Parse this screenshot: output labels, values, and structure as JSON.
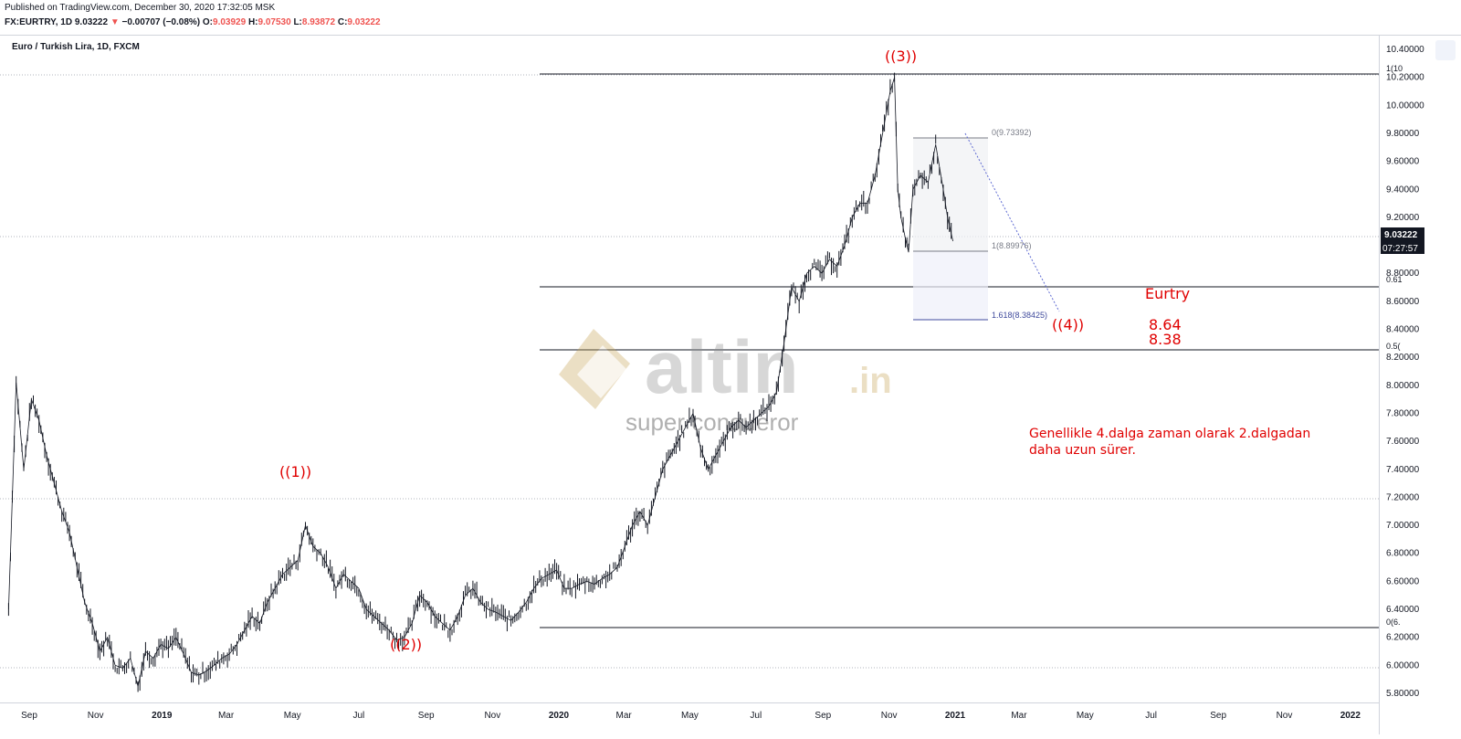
{
  "header": {
    "published": "Published on TradingView.com, December 30, 2020 17:32:05 MSK",
    "symbol": "FX:EURTRY, 1D",
    "last": "9.03222",
    "change": "−0.00707 (−0.08%)",
    "o_label": "O:",
    "o": "9.03929",
    "h_label": "H:",
    "h": "9.07530",
    "l_label": "L:",
    "l": "8.93872",
    "c_label": "C:",
    "c": "9.03222"
  },
  "chart_title": "Euro / Turkish Lira, 1D, FXCM",
  "price_label": {
    "value": "9.03222",
    "countdown": "07:27:57"
  },
  "colors": {
    "up": "#131722",
    "marker": "#131722",
    "annotation": "#e00000",
    "fib_blue": "#3f4a9c"
  },
  "annotations": {
    "wave1": "((1))",
    "wave2": "((2))",
    "wave3": "((3))",
    "wave4": "((4))",
    "title": "Eurtry",
    "target1": "8.64",
    "target2": "8.38",
    "note_line1": "Genellikle 4.dalga zaman olarak 2.dalgadan",
    "note_line2": "daha uzun sürer."
  },
  "fib_labels": {
    "zero": "0(9.73392)",
    "one": "1(8.89976)",
    "ext": "1.618(8.38425)",
    "r_top": "1(10",
    "r_061": "0.61",
    "r_05": "0.5(",
    "r_0": "0(6."
  },
  "watermark": {
    "brand": "altin",
    "tld": ".in",
    "tagline": "super conqueror"
  },
  "chart_data": {
    "type": "line",
    "title": "Euro / Turkish Lira, 1D, FXCM",
    "y_ticks": [
      "10.40000",
      "10.20000",
      "10.00000",
      "9.80000",
      "9.60000",
      "9.40000",
      "9.20000",
      "8.80000",
      "8.60000",
      "8.40000",
      "8.20000",
      "8.00000",
      "7.80000",
      "7.60000",
      "7.40000",
      "7.20000",
      "7.00000",
      "6.80000",
      "6.60000",
      "6.40000",
      "6.20000",
      "6.00000",
      "5.80000"
    ],
    "x_ticks": [
      "Sep",
      "Nov",
      "2019",
      "Mar",
      "May",
      "Jul",
      "Sep",
      "Nov",
      "2020",
      "Mar",
      "May",
      "Jul",
      "Sep",
      "Nov",
      "2021",
      "Mar",
      "May",
      "Jul",
      "Sep",
      "Nov",
      "2022"
    ],
    "ylim": [
      5.7,
      10.5
    ],
    "series": [
      {
        "values": [
          [
            "2018-08-13",
            6.4
          ],
          [
            "2018-08-20",
            8.02
          ],
          [
            "2018-08-27",
            7.4
          ],
          [
            "2018-09-03",
            7.9
          ],
          [
            "2018-09-10",
            7.75
          ],
          [
            "2018-09-17",
            7.5
          ],
          [
            "2018-09-24",
            7.3
          ],
          [
            "2018-10-01",
            7.1
          ],
          [
            "2018-10-08",
            6.95
          ],
          [
            "2018-10-15",
            6.7
          ],
          [
            "2018-10-22",
            6.45
          ],
          [
            "2018-10-29",
            6.3
          ],
          [
            "2018-11-05",
            6.1
          ],
          [
            "2018-11-12",
            6.2
          ],
          [
            "2018-11-19",
            6.0
          ],
          [
            "2018-11-26",
            5.98
          ],
          [
            "2018-12-03",
            6.05
          ],
          [
            "2018-12-10",
            5.85
          ],
          [
            "2018-12-17",
            6.1
          ],
          [
            "2018-12-24",
            6.05
          ],
          [
            "2018-12-31",
            6.15
          ],
          [
            "2019-01-07",
            6.12
          ],
          [
            "2019-01-14",
            6.2
          ],
          [
            "2019-01-21",
            6.08
          ],
          [
            "2019-01-28",
            5.95
          ],
          [
            "2019-02-04",
            5.93
          ],
          [
            "2019-02-11",
            5.96
          ],
          [
            "2019-02-18",
            6.0
          ],
          [
            "2019-02-25",
            6.05
          ],
          [
            "2019-03-04",
            6.08
          ],
          [
            "2019-03-11",
            6.15
          ],
          [
            "2019-03-18",
            6.25
          ],
          [
            "2019-03-25",
            6.35
          ],
          [
            "2019-04-01",
            6.3
          ],
          [
            "2019-04-08",
            6.45
          ],
          [
            "2019-04-15",
            6.55
          ],
          [
            "2019-04-22",
            6.65
          ],
          [
            "2019-04-29",
            6.7
          ],
          [
            "2019-05-06",
            6.75
          ],
          [
            "2019-05-13",
            7.0
          ],
          [
            "2019-05-20",
            6.85
          ],
          [
            "2019-05-27",
            6.8
          ],
          [
            "2019-06-03",
            6.7
          ],
          [
            "2019-06-10",
            6.55
          ],
          [
            "2019-06-17",
            6.65
          ],
          [
            "2019-06-24",
            6.6
          ],
          [
            "2019-07-01",
            6.55
          ],
          [
            "2019-07-08",
            6.4
          ],
          [
            "2019-07-15",
            6.35
          ],
          [
            "2019-07-22",
            6.3
          ],
          [
            "2019-07-29",
            6.25
          ],
          [
            "2019-08-05",
            6.18
          ],
          [
            "2019-08-12",
            6.2
          ],
          [
            "2019-08-19",
            6.3
          ],
          [
            "2019-08-26",
            6.5
          ],
          [
            "2019-09-02",
            6.45
          ],
          [
            "2019-09-09",
            6.35
          ],
          [
            "2019-09-16",
            6.3
          ],
          [
            "2019-09-23",
            6.25
          ],
          [
            "2019-09-30",
            6.35
          ],
          [
            "2019-10-07",
            6.5
          ],
          [
            "2019-10-14",
            6.55
          ],
          [
            "2019-10-21",
            6.45
          ],
          [
            "2019-10-28",
            6.4
          ],
          [
            "2019-11-04",
            6.38
          ],
          [
            "2019-11-11",
            6.35
          ],
          [
            "2019-11-18",
            6.32
          ],
          [
            "2019-11-25",
            6.38
          ],
          [
            "2019-12-02",
            6.45
          ],
          [
            "2019-12-09",
            6.55
          ],
          [
            "2019-12-16",
            6.62
          ],
          [
            "2019-12-23",
            6.65
          ],
          [
            "2019-12-30",
            6.68
          ],
          [
            "2020-01-06",
            6.55
          ],
          [
            "2020-01-13",
            6.55
          ],
          [
            "2020-01-20",
            6.58
          ],
          [
            "2020-01-27",
            6.6
          ],
          [
            "2020-02-03",
            6.58
          ],
          [
            "2020-02-10",
            6.62
          ],
          [
            "2020-02-17",
            6.65
          ],
          [
            "2020-02-24",
            6.7
          ],
          [
            "2020-03-02",
            6.85
          ],
          [
            "2020-03-09",
            7.0
          ],
          [
            "2020-03-16",
            7.1
          ],
          [
            "2020-03-23",
            7.0
          ],
          [
            "2020-03-30",
            7.2
          ],
          [
            "2020-04-06",
            7.4
          ],
          [
            "2020-04-13",
            7.5
          ],
          [
            "2020-04-20",
            7.6
          ],
          [
            "2020-04-27",
            7.7
          ],
          [
            "2020-05-04",
            7.8
          ],
          [
            "2020-05-11",
            7.55
          ],
          [
            "2020-05-18",
            7.4
          ],
          [
            "2020-05-25",
            7.5
          ],
          [
            "2020-06-01",
            7.6
          ],
          [
            "2020-06-08",
            7.7
          ],
          [
            "2020-06-15",
            7.75
          ],
          [
            "2020-06-22",
            7.7
          ],
          [
            "2020-06-29",
            7.75
          ],
          [
            "2020-07-06",
            7.8
          ],
          [
            "2020-07-13",
            7.85
          ],
          [
            "2020-07-20",
            7.95
          ],
          [
            "2020-07-27",
            8.3
          ],
          [
            "2020-08-03",
            8.7
          ],
          [
            "2020-08-10",
            8.6
          ],
          [
            "2020-08-17",
            8.8
          ],
          [
            "2020-08-24",
            8.85
          ],
          [
            "2020-08-31",
            8.8
          ],
          [
            "2020-09-07",
            8.9
          ],
          [
            "2020-09-14",
            8.85
          ],
          [
            "2020-09-21",
            9.0
          ],
          [
            "2020-09-28",
            9.2
          ],
          [
            "2020-10-05",
            9.3
          ],
          [
            "2020-10-12",
            9.3
          ],
          [
            "2020-10-19",
            9.5
          ],
          [
            "2020-10-26",
            9.8
          ],
          [
            "2020-11-02",
            10.1
          ],
          [
            "2020-11-06",
            10.2
          ],
          [
            "2020-11-09",
            9.4
          ],
          [
            "2020-11-12",
            9.2
          ],
          [
            "2020-11-16",
            9.05
          ],
          [
            "2020-11-19",
            8.95
          ],
          [
            "2020-11-23",
            9.4
          ],
          [
            "2020-11-30",
            9.5
          ],
          [
            "2020-12-07",
            9.45
          ],
          [
            "2020-12-14",
            9.72
          ],
          [
            "2020-12-21",
            9.4
          ],
          [
            "2020-12-25",
            9.2
          ],
          [
            "2020-12-30",
            9.03
          ]
        ]
      }
    ]
  }
}
